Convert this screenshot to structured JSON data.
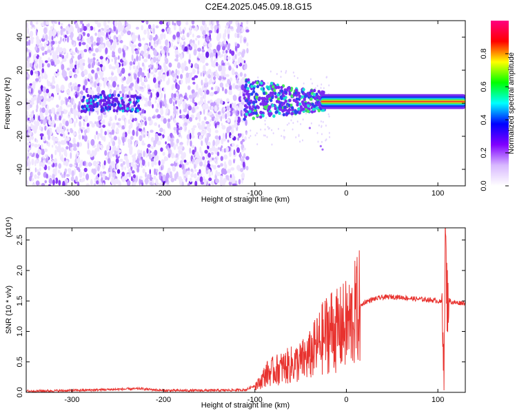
{
  "title": "C2E4.2025.045.09.18.G15",
  "colors": {
    "spectrogram_low": "#e8dcff",
    "spectrogram_mid": "#7a2cf0",
    "snr_line": "#e8322e",
    "axis": "#000000"
  },
  "chart_data": [
    {
      "type": "heatmap",
      "title": "C2E4.2025.045.09.18.G15",
      "xlabel": "Height of straight line (km)",
      "ylabel": "Frequency (Hz)",
      "xlim": [
        -350,
        130
      ],
      "ylim": [
        -50,
        50
      ],
      "xticks": [
        -300,
        -200,
        -100,
        0,
        100
      ],
      "yticks": [
        -40,
        -20,
        0,
        20,
        40
      ],
      "colorbar": {
        "label": "Normalized spectral amplitude",
        "range": [
          0.0,
          1.0
        ],
        "ticks": [
          0.0,
          0.2,
          0.4,
          0.6,
          0.8
        ],
        "tick_labels": [
          "0.0",
          "0.2",
          "0.4",
          "0.6",
          "0.8"
        ],
        "colors": [
          "#ffffff",
          "#d8b8ff",
          "#8000ff",
          "#0000ff",
          "#00ffff",
          "#00ff00",
          "#ffff00",
          "#ff0000",
          "#ff0080"
        ]
      },
      "regions": [
        {
          "x_range": [
            -350,
            -108
          ],
          "freq_range": [
            -50,
            50
          ],
          "amplitude": "noise, 0.0-0.2"
        },
        {
          "x_range": [
            -280,
            -230
          ],
          "freq_range": [
            -6,
            6
          ],
          "amplitude": "0.2-0.4"
        },
        {
          "x_range": [
            -110,
            -25
          ],
          "freq_range": [
            -12,
            14
          ],
          "amplitude": "0.2-0.5"
        },
        {
          "x_range": [
            -25,
            130
          ],
          "freq_range": [
            -2,
            4
          ],
          "amplitude": "0.6-1.0"
        }
      ]
    },
    {
      "type": "line",
      "xlabel": "Height of straight line (km)",
      "ylabel": "SNR (10 * v/v)",
      "y_multiplier": "(x10⁴)",
      "xlim": [
        -350,
        130
      ],
      "ylim": [
        0.0,
        2.7
      ],
      "xticks": [
        -300,
        -200,
        -100,
        0,
        100
      ],
      "yticks": [
        0.0,
        0.5,
        1.0,
        1.5,
        2.0,
        2.5
      ],
      "ytick_labels": [
        "0.0",
        "0.5",
        "1.0",
        "1.5",
        "2.0",
        "2.5"
      ],
      "series": [
        {
          "x": [
            -350,
            -300,
            -250,
            -225,
            -200,
            -150,
            -110,
            -95,
            -88,
            -80,
            -70,
            -60,
            -50,
            -40,
            -30,
            -25,
            -20,
            -15,
            -10,
            -5,
            0,
            5,
            10,
            15,
            20,
            30,
            40,
            50,
            60,
            70,
            80,
            90,
            100,
            105,
            107,
            108,
            110,
            115,
            120,
            130
          ],
          "y": [
            0.02,
            0.03,
            0.05,
            0.06,
            0.03,
            0.03,
            0.04,
            0.15,
            0.3,
            0.35,
            0.4,
            0.45,
            0.5,
            0.6,
            0.8,
            0.9,
            1.0,
            1.05,
            1.0,
            1.05,
            1.1,
            1.15,
            1.3,
            1.4,
            1.48,
            1.53,
            1.56,
            1.57,
            1.56,
            1.54,
            1.53,
            1.52,
            1.5,
            1.47,
            0.3,
            2.6,
            1.55,
            1.48,
            1.47,
            1.47
          ]
        }
      ]
    }
  ]
}
